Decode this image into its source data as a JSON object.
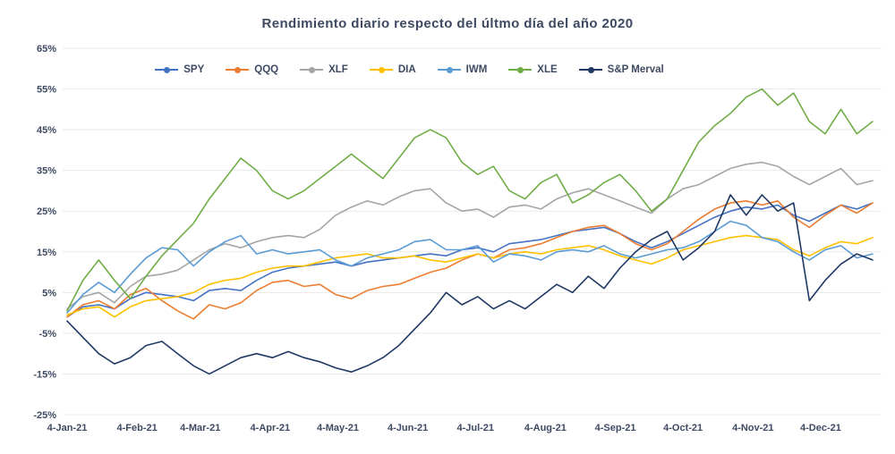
{
  "page": {
    "title": "Rendimiento diario respecto del últmo día del año 2020"
  },
  "chart_data": {
    "type": "line",
    "title": "Rendimiento diario respecto del últmo día del año 2020",
    "xlabel": "",
    "ylabel": "",
    "ylim": [
      -25,
      65
    ],
    "yticks": [
      65,
      55,
      45,
      35,
      25,
      15,
      5,
      -5,
      -15,
      -25
    ],
    "ytick_suffix": "%",
    "grid": true,
    "legend_position": "top",
    "text_color": "#3e4a62",
    "grid_color": "#e9e9e9",
    "span_days": 361,
    "step_days": 7,
    "xticks": [
      {
        "label": "4-Jan-21",
        "day": 0
      },
      {
        "label": "4-Feb-21",
        "day": 31
      },
      {
        "label": "4-Mar-21",
        "day": 59
      },
      {
        "label": "4-Apr-21",
        "day": 90
      },
      {
        "label": "4-May-21",
        "day": 120
      },
      {
        "label": "4-Jun-21",
        "day": 151
      },
      {
        "label": "4-Jul-21",
        "day": 181
      },
      {
        "label": "4-Aug-21",
        "day": 212
      },
      {
        "label": "4-Sep-21",
        "day": 243
      },
      {
        "label": "4-Oct-21",
        "day": 273
      },
      {
        "label": "4-Nov-21",
        "day": 304
      },
      {
        "label": "4-Dec-21",
        "day": 334
      }
    ],
    "series": [
      {
        "name": "SPY",
        "color": "#4472c4",
        "values": [
          -1,
          1.5,
          2,
          1,
          3.5,
          5,
          4.5,
          4,
          3,
          5.5,
          6,
          5.5,
          8,
          10,
          11,
          11.5,
          12,
          12.5,
          11.5,
          12.5,
          13,
          13.5,
          14,
          14.5,
          14,
          15.5,
          16,
          15,
          17,
          17.5,
          18,
          19,
          20,
          20.5,
          21,
          19.5,
          17.5,
          16,
          17.5,
          19.5,
          21.5,
          23.5,
          25,
          26,
          25.5,
          26.5,
          24,
          22.5,
          24.5,
          26.5,
          25.5,
          27
        ]
      },
      {
        "name": "QQQ",
        "color": "#ed7d31",
        "values": [
          -1,
          2,
          3,
          1,
          4.5,
          6,
          3,
          0.5,
          -1.5,
          2,
          1,
          2.5,
          5.5,
          7.5,
          8,
          6.5,
          7,
          4.5,
          3.5,
          5.5,
          6.5,
          7,
          8.5,
          10,
          11,
          13,
          14.5,
          13.5,
          15.5,
          16,
          17,
          18.5,
          20,
          21,
          21.5,
          19.5,
          17,
          15.5,
          17,
          20,
          23,
          25.5,
          27,
          27.5,
          26.5,
          27.5,
          23.5,
          21,
          24,
          26.5,
          24.5,
          27
        ]
      },
      {
        "name": "XLF",
        "color": "#a5a5a5",
        "values": [
          1,
          4,
          5,
          2.5,
          6.5,
          9,
          9.5,
          10.5,
          13,
          15.5,
          17,
          16,
          17.5,
          18.5,
          19,
          18.5,
          20.5,
          24,
          26,
          27.5,
          26.5,
          28.5,
          30,
          30.5,
          27,
          25,
          25.5,
          23.5,
          26,
          26.5,
          25.5,
          28,
          29.5,
          30.5,
          29,
          27.5,
          26,
          24.5,
          28,
          30.5,
          31.5,
          33.5,
          35.5,
          36.5,
          37,
          36,
          33.5,
          31.5,
          33.5,
          35.5,
          31.5,
          32.5
        ]
      },
      {
        "name": "DIA",
        "color": "#ffc000",
        "values": [
          -0.5,
          1,
          1.5,
          -1,
          1.5,
          3,
          3.5,
          4,
          5,
          7,
          8,
          8.5,
          10,
          11,
          11.5,
          11.5,
          12.5,
          13.5,
          14,
          14.5,
          13.5,
          13.5,
          14,
          13,
          12.5,
          13.5,
          14.5,
          13.5,
          14.5,
          15,
          14.5,
          15.5,
          16,
          16.5,
          15.5,
          14,
          13,
          12,
          13.5,
          15.5,
          16.5,
          17.5,
          18.5,
          19,
          18.5,
          18,
          15.5,
          14,
          16,
          17.5,
          17,
          18.5
        ]
      },
      {
        "name": "IWM",
        "color": "#5b9bd5",
        "values": [
          0,
          4.5,
          7.5,
          5,
          9.5,
          13.5,
          16,
          15.5,
          11.5,
          15,
          17.5,
          19,
          14.5,
          15.5,
          14.5,
          15,
          15.5,
          13,
          11.5,
          13.5,
          14.5,
          15.5,
          17.5,
          18,
          15.5,
          15.5,
          16.5,
          12.5,
          14.5,
          14,
          13,
          15,
          15.5,
          15,
          16.5,
          14.5,
          13.5,
          14.5,
          15.5,
          16,
          17.5,
          20,
          22.5,
          21.5,
          18.5,
          17.5,
          15,
          13,
          15.5,
          16.5,
          13.5,
          14.5
        ]
      },
      {
        "name": "XLE",
        "color": "#70ad47",
        "values": [
          0.5,
          8,
          13,
          8,
          3.5,
          9,
          14,
          18,
          22,
          28,
          33,
          38,
          35,
          30,
          28,
          30,
          33,
          36,
          39,
          36,
          33,
          38,
          43,
          45,
          43,
          37,
          34,
          36,
          30,
          28,
          32,
          34,
          27,
          29,
          32,
          34,
          30,
          25,
          28,
          35,
          42,
          46,
          49,
          53,
          55,
          51,
          54,
          47,
          44,
          50,
          44,
          47
        ]
      },
      {
        "name": "S&P Merval",
        "color": "#1f3864",
        "values": [
          -2,
          -6,
          -10,
          -12.5,
          -11,
          -8,
          -7,
          -10,
          -13,
          -15,
          -13,
          -11,
          -10,
          -11,
          -9.5,
          -11,
          -12,
          -13.5,
          -14.5,
          -13,
          -11,
          -8,
          -4,
          0,
          5,
          2,
          4,
          1,
          3,
          1,
          4,
          7,
          5,
          9,
          6,
          11,
          15,
          18,
          20,
          13,
          16,
          20,
          29,
          24,
          29,
          25,
          27,
          3,
          8,
          12,
          14.5,
          13
        ]
      }
    ]
  }
}
